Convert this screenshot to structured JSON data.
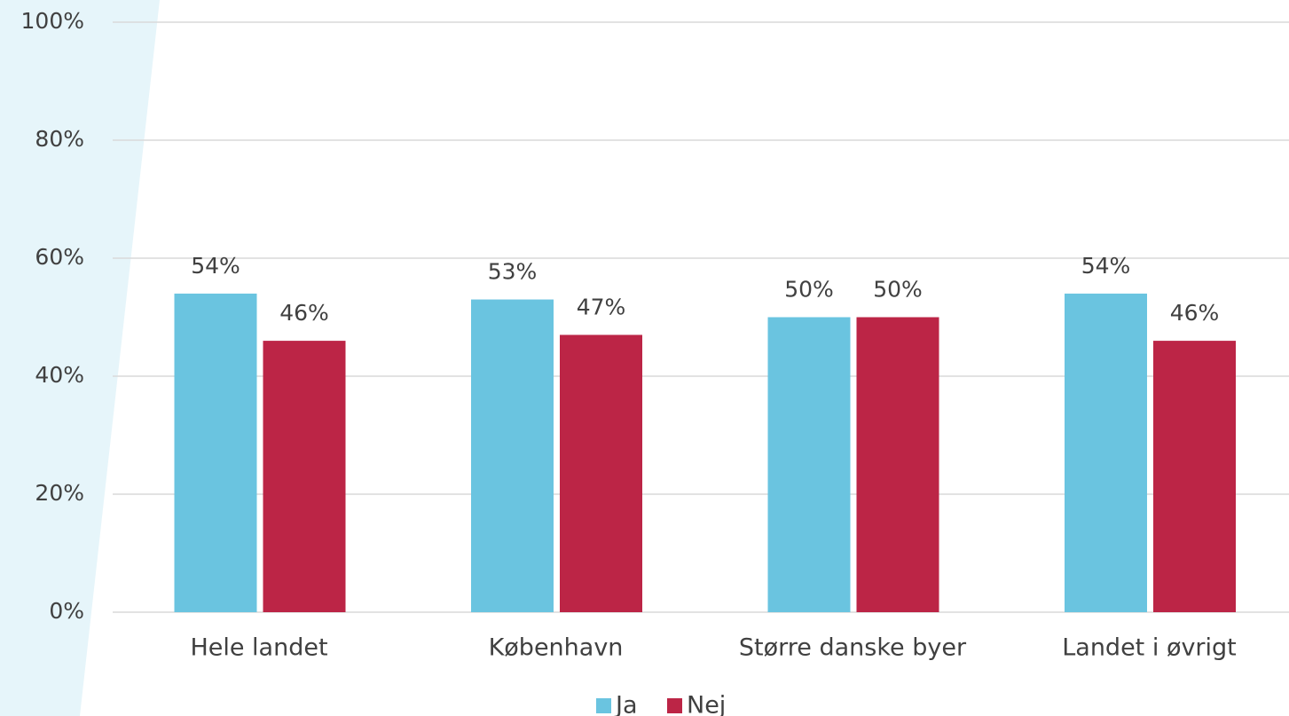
{
  "chart_data": {
    "type": "bar",
    "categories": [
      "Hele landet",
      "København",
      "Større danske byer",
      "Landet i øvrigt"
    ],
    "series": [
      {
        "name": "Ja",
        "color": "#6ac4e0",
        "values": [
          54,
          53,
          50,
          54
        ],
        "value_labels": [
          "54%",
          "53%",
          "50%",
          "54%"
        ]
      },
      {
        "name": "Nej",
        "color": "#bc2546",
        "values": [
          46,
          47,
          50,
          46
        ],
        "value_labels": [
          "46%",
          "47%",
          "50%",
          "46%"
        ]
      }
    ],
    "ylim": [
      0,
      100
    ],
    "yticks": [
      {
        "value": 0,
        "label": "0%"
      },
      {
        "value": 20,
        "label": "20%"
      },
      {
        "value": 40,
        "label": "40%"
      },
      {
        "value": 60,
        "label": "60%"
      },
      {
        "value": 80,
        "label": "80%"
      },
      {
        "value": 100,
        "label": "100%"
      }
    ],
    "grid": true,
    "legend": "bottom"
  }
}
